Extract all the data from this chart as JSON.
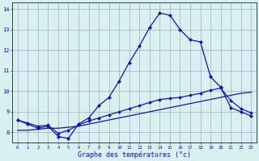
{
  "xlabel": "Graphe des températures (°c)",
  "hours": [
    0,
    1,
    2,
    3,
    4,
    5,
    6,
    7,
    8,
    9,
    10,
    11,
    12,
    13,
    14,
    15,
    16,
    17,
    18,
    19,
    20,
    21,
    22,
    23
  ],
  "line_main": [
    8.6,
    8.4,
    8.2,
    8.3,
    7.8,
    7.7,
    8.4,
    8.7,
    9.3,
    9.7,
    10.5,
    11.4,
    12.2,
    13.1,
    13.8,
    13.7,
    13.0,
    12.5,
    12.4,
    10.7,
    10.2,
    9.2,
    9.0,
    8.8
  ],
  "line_mid": [
    8.6,
    8.45,
    8.3,
    8.35,
    7.95,
    8.1,
    8.35,
    8.55,
    8.7,
    8.85,
    9.0,
    9.15,
    9.3,
    9.45,
    9.6,
    9.65,
    9.7,
    9.8,
    9.9,
    10.05,
    10.15,
    9.55,
    9.15,
    8.95
  ],
  "line_low": [
    8.1,
    8.1,
    8.15,
    8.2,
    8.2,
    8.25,
    8.3,
    8.4,
    8.5,
    8.6,
    8.7,
    8.8,
    8.9,
    9.0,
    9.1,
    9.2,
    9.3,
    9.4,
    9.5,
    9.6,
    9.7,
    9.8,
    9.9,
    9.95
  ],
  "line_color": "#1414aa",
  "bg_color": "#d8f0f0",
  "grid_color": "#9999bb",
  "ylim": [
    7.5,
    14.3
  ],
  "xlim": [
    -0.5,
    23.5
  ],
  "yticks": [
    8,
    9,
    10,
    11,
    12,
    13,
    14
  ],
  "xticks": [
    0,
    1,
    2,
    3,
    4,
    5,
    6,
    7,
    8,
    9,
    10,
    11,
    12,
    13,
    14,
    15,
    16,
    17,
    18,
    19,
    20,
    21,
    22,
    23
  ]
}
